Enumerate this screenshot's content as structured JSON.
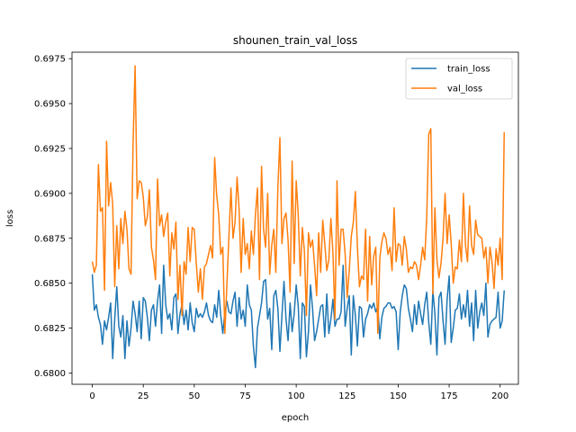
{
  "chart_data": {
    "type": "line",
    "title": "shounen_train_val_loss",
    "xlabel": "epoch",
    "ylabel": "loss",
    "xlim": [
      -9.95,
      208.95
    ],
    "ylim": [
      0.67937,
      0.69786
    ],
    "xticks": [
      0,
      25,
      50,
      75,
      100,
      125,
      150,
      175,
      200
    ],
    "yticks": [
      0.68,
      0.6825,
      0.685,
      0.6875,
      0.69,
      0.6925,
      0.695,
      0.6975
    ],
    "xtick_labels": [
      "0",
      "25",
      "50",
      "75",
      "100",
      "125",
      "150",
      "175",
      "200"
    ],
    "ytick_labels": [
      "0.6800",
      "0.6825",
      "0.6850",
      "0.6875",
      "0.6900",
      "0.6925",
      "0.6950",
      "0.6975"
    ],
    "legend_position": "upper-right",
    "grid": false,
    "series": [
      {
        "name": "train_loss",
        "color": "#1f77b4",
        "values": [
          0.6855,
          0.6835,
          0.6838,
          0.6831,
          0.6827,
          0.6816,
          0.6829,
          0.6824,
          0.6831,
          0.6839,
          0.6808,
          0.683,
          0.6848,
          0.6826,
          0.682,
          0.6832,
          0.6808,
          0.6829,
          0.6815,
          0.6825,
          0.684,
          0.6833,
          0.6823,
          0.684,
          0.6819,
          0.6842,
          0.684,
          0.6831,
          0.6818,
          0.6835,
          0.6838,
          0.6826,
          0.684,
          0.6849,
          0.6822,
          0.686,
          0.6838,
          0.683,
          0.6833,
          0.6824,
          0.6842,
          0.6844,
          0.6822,
          0.6833,
          0.6838,
          0.6827,
          0.6835,
          0.6824,
          0.6839,
          0.6828,
          0.6823,
          0.6836,
          0.6831,
          0.6833,
          0.6831,
          0.6834,
          0.6839,
          0.6832,
          0.6829,
          0.6828,
          0.6838,
          0.6831,
          0.6846,
          0.6832,
          0.6822,
          0.6834,
          0.684,
          0.6834,
          0.6833,
          0.684,
          0.6845,
          0.6826,
          0.6842,
          0.683,
          0.6835,
          0.6826,
          0.6849,
          0.6838,
          0.6835,
          0.6815,
          0.6803,
          0.6825,
          0.6832,
          0.6839,
          0.6851,
          0.6852,
          0.683,
          0.6836,
          0.6813,
          0.6843,
          0.6846,
          0.6836,
          0.6812,
          0.6832,
          0.6851,
          0.683,
          0.6818,
          0.6839,
          0.6823,
          0.6833,
          0.6849,
          0.6837,
          0.6808,
          0.6839,
          0.6837,
          0.6809,
          0.6823,
          0.6849,
          0.6836,
          0.6818,
          0.6823,
          0.683,
          0.6837,
          0.6838,
          0.682,
          0.6844,
          0.6822,
          0.683,
          0.6841,
          0.6826,
          0.683,
          0.683,
          0.6834,
          0.686,
          0.6826,
          0.6836,
          0.6843,
          0.681,
          0.6843,
          0.6832,
          0.6815,
          0.6837,
          0.6836,
          0.682,
          0.683,
          0.6833,
          0.6838,
          0.6836,
          0.6839,
          0.6834,
          0.6837,
          0.6819,
          0.6831,
          0.6836,
          0.6837,
          0.6839,
          0.6839,
          0.6836,
          0.6837,
          0.6834,
          0.6813,
          0.6834,
          0.6843,
          0.6849,
          0.6847,
          0.6836,
          0.683,
          0.6823,
          0.6838,
          0.6827,
          0.684,
          0.6833,
          0.6827,
          0.6838,
          0.6845,
          0.6828,
          0.6816,
          0.6846,
          0.6833,
          0.681,
          0.6842,
          0.6845,
          0.6829,
          0.6816,
          0.6841,
          0.6854,
          0.6817,
          0.6825,
          0.6835,
          0.6836,
          0.6844,
          0.683,
          0.6838,
          0.6831,
          0.6846,
          0.6826,
          0.6839,
          0.6818,
          0.6846,
          0.6825,
          0.6834,
          0.6839,
          0.6832,
          0.685,
          0.682,
          0.6827,
          0.6829,
          0.683,
          0.6831,
          0.6845,
          0.6825,
          0.6829,
          0.6846
        ]
      },
      {
        "name": "val_loss",
        "color": "#ff7f0e",
        "values": [
          0.6862,
          0.6856,
          0.686,
          0.6916,
          0.689,
          0.6892,
          0.6846,
          0.6929,
          0.6893,
          0.6906,
          0.6894,
          0.6848,
          0.6882,
          0.6858,
          0.6886,
          0.6872,
          0.689,
          0.688,
          0.6858,
          0.6855,
          0.6928,
          0.6971,
          0.6897,
          0.6907,
          0.6906,
          0.6898,
          0.6882,
          0.6887,
          0.6902,
          0.687,
          0.6863,
          0.6852,
          0.6908,
          0.6882,
          0.6888,
          0.6876,
          0.6884,
          0.6889,
          0.6854,
          0.6878,
          0.6869,
          0.6884,
          0.6841,
          0.686,
          0.6832,
          0.6862,
          0.6855,
          0.6881,
          0.6862,
          0.6881,
          0.688,
          0.6861,
          0.6845,
          0.6858,
          0.6841,
          0.6859,
          0.6861,
          0.6866,
          0.6871,
          0.6864,
          0.692,
          0.6899,
          0.6888,
          0.6866,
          0.687,
          0.6822,
          0.6849,
          0.6876,
          0.6903,
          0.6875,
          0.6884,
          0.6909,
          0.6891,
          0.6856,
          0.6886,
          0.6866,
          0.6872,
          0.6858,
          0.6879,
          0.6866,
          0.6888,
          0.6903,
          0.6852,
          0.6915,
          0.688,
          0.687,
          0.69,
          0.6855,
          0.6871,
          0.688,
          0.6856,
          0.6903,
          0.6931,
          0.6872,
          0.6886,
          0.6889,
          0.6874,
          0.6845,
          0.6918,
          0.6861,
          0.6907,
          0.6888,
          0.6854,
          0.6881,
          0.6868,
          0.6832,
          0.6878,
          0.687,
          0.6874,
          0.686,
          0.6843,
          0.6878,
          0.6856,
          0.6885,
          0.6872,
          0.6857,
          0.6863,
          0.6886,
          0.6867,
          0.683,
          0.6907,
          0.686,
          0.688,
          0.688,
          0.6866,
          0.6842,
          0.6857,
          0.6876,
          0.6884,
          0.6901,
          0.687,
          0.6848,
          0.6854,
          0.6852,
          0.688,
          0.684,
          0.6876,
          0.6849,
          0.6865,
          0.687,
          0.6822,
          0.6864,
          0.6873,
          0.6878,
          0.6875,
          0.6866,
          0.687,
          0.6857,
          0.6892,
          0.6862,
          0.6872,
          0.6871,
          0.686,
          0.6876,
          0.6869,
          0.6856,
          0.6859,
          0.6858,
          0.6862,
          0.686,
          0.6852,
          0.686,
          0.687,
          0.6863,
          0.6887,
          0.6933,
          0.6936,
          0.6844,
          0.6892,
          0.6863,
          0.6853,
          0.6861,
          0.6875,
          0.69,
          0.6872,
          0.6888,
          0.6872,
          0.685,
          0.6859,
          0.6858,
          0.6874,
          0.6862,
          0.69,
          0.6871,
          0.6862,
          0.6893,
          0.6871,
          0.6866,
          0.6885,
          0.6877,
          0.6876,
          0.6875,
          0.6864,
          0.687,
          0.685,
          0.687,
          0.6862,
          0.6847,
          0.6869,
          0.686,
          0.6875,
          0.6852,
          0.6934
        ]
      }
    ]
  }
}
